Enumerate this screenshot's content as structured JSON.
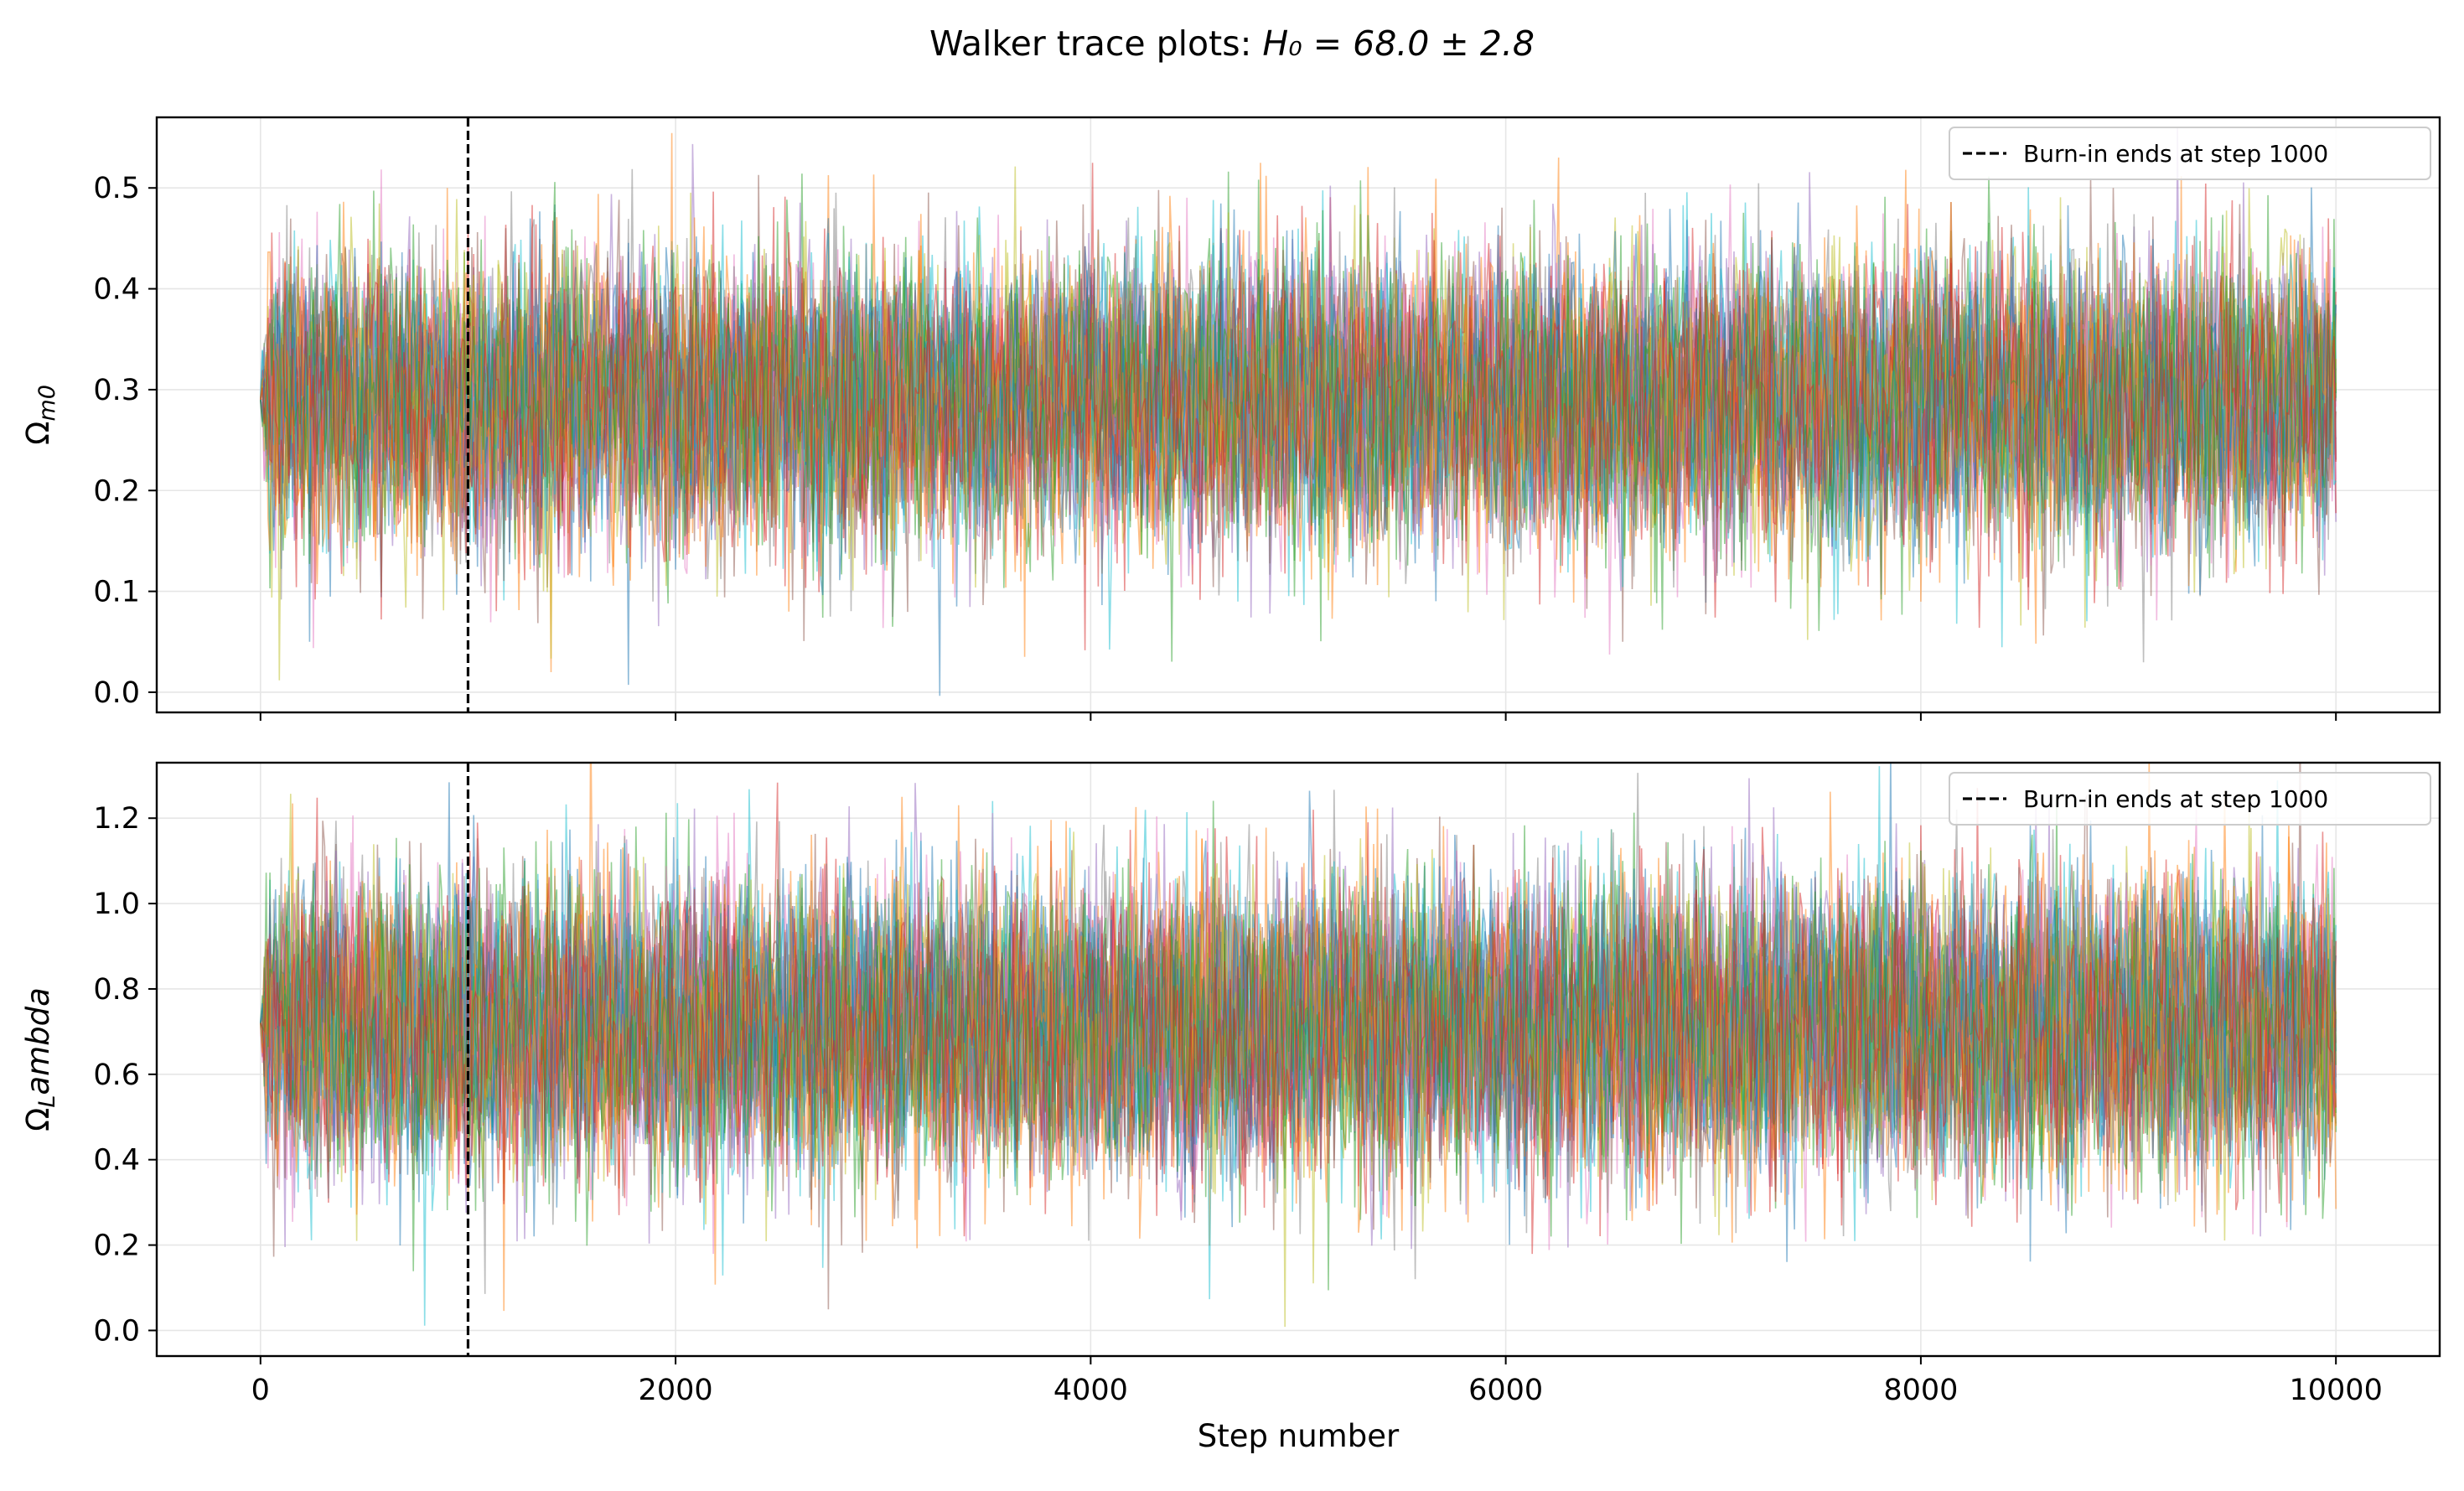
{
  "figure": {
    "title_text": "Walker trace plots: ",
    "title_math": "H₀ = 68.0 ± 2.8"
  },
  "chart_data": [
    {
      "type": "line",
      "ylabel": "Ω_m0",
      "ylabel_base": "Ω",
      "ylabel_sub": "m0",
      "xlabel": "",
      "xlim": [
        -500,
        10500
      ],
      "ylim": [
        -0.02,
        0.57
      ],
      "x_ticks": [
        0,
        2000,
        4000,
        6000,
        8000,
        10000
      ],
      "y_ticks": [
        0.0,
        0.1,
        0.2,
        0.3,
        0.4,
        0.5
      ],
      "y_tick_labels": [
        "0.0",
        "0.1",
        "0.2",
        "0.3",
        "0.4",
        "0.5"
      ],
      "grid": true,
      "walkers": 24,
      "steps": 10000,
      "series_mean": 0.29,
      "series_spread": 0.07,
      "start_value": 0.29,
      "burn_in_step": 1000,
      "legend": {
        "position": "upper right",
        "label": "Burn-in ends at step 1000"
      }
    },
    {
      "type": "line",
      "ylabel": "Ω_Lambda",
      "ylabel_base": "Ω",
      "ylabel_sub": "L",
      "ylabel_rest": "ambda",
      "xlabel": "Step number",
      "xlim": [
        -500,
        10500
      ],
      "ylim": [
        -0.06,
        1.33
      ],
      "x_ticks": [
        0,
        2000,
        4000,
        6000,
        8000,
        10000
      ],
      "x_tick_labels": [
        "0",
        "2000",
        "4000",
        "6000",
        "8000",
        "10000"
      ],
      "y_ticks": [
        0.0,
        0.2,
        0.4,
        0.6,
        0.8,
        1.0,
        1.2
      ],
      "y_tick_labels": [
        "0.0",
        "0.2",
        "0.4",
        "0.6",
        "0.8",
        "1.0",
        "1.2"
      ],
      "grid": true,
      "walkers": 24,
      "steps": 10000,
      "series_mean": 0.71,
      "series_spread": 0.17,
      "start_value": 0.72,
      "burn_in_step": 1000,
      "legend": {
        "position": "upper right",
        "label": "Burn-in ends at step 1000"
      }
    }
  ],
  "palette": [
    "#1f77b4",
    "#ff7f0e",
    "#2ca02c",
    "#d62728",
    "#9467bd",
    "#8c564b",
    "#e377c2",
    "#7f7f7f",
    "#bcbd22",
    "#17becf"
  ]
}
